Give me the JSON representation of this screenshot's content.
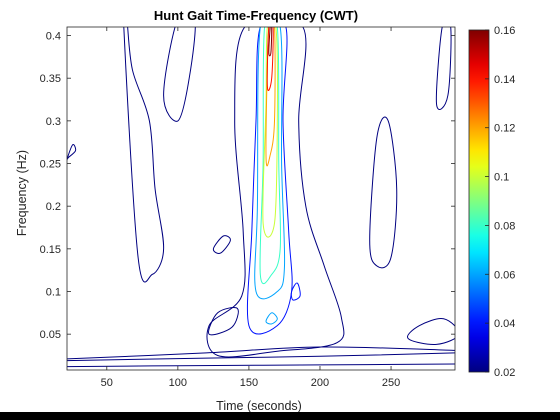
{
  "chart_data": {
    "type": "contour",
    "title": "Hunt Gait Time-Frequency (CWT)",
    "xlabel": "Time (seconds)",
    "ylabel": "Frequency (Hz)",
    "xlim": [
      22,
      295
    ],
    "ylim": [
      0.008,
      0.41
    ],
    "xticks": [
      50,
      100,
      150,
      200,
      250
    ],
    "yticks": [
      0.05,
      0.1,
      0.15,
      0.2,
      0.25,
      0.3,
      0.35,
      0.4
    ],
    "colorbar": {
      "colormap": "jet",
      "range": [
        0.02,
        0.16
      ],
      "ticks": [
        0.02,
        0.04,
        0.06,
        0.08,
        0.1,
        0.12,
        0.14,
        0.16
      ],
      "position": "right"
    },
    "contour_levels": [
      0.02,
      0.04,
      0.06,
      0.08,
      0.1,
      0.12,
      0.14,
      0.16
    ],
    "features": [
      {
        "type": "ridge",
        "center_time": 165,
        "freq_range": [
          0.07,
          0.41
        ],
        "peak_value": 0.16
      },
      {
        "type": "band",
        "freq_range": [
          0.013,
          0.035
        ],
        "time_range": [
          22,
          295
        ],
        "value": 0.02
      },
      {
        "type": "blob",
        "center_time": 278,
        "center_freq": 0.053,
        "value": 0.02
      }
    ],
    "grid": false
  }
}
